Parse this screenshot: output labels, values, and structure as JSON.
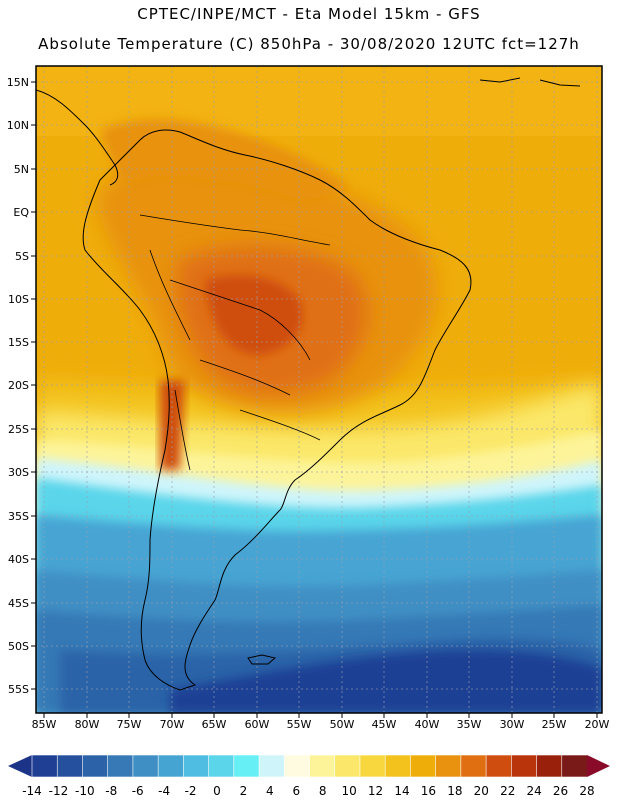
{
  "header": {
    "title_line1": "CPTEC/INPE/MCT -  Eta Model 15km - GFS",
    "title_line2": "Absolute Temperature (C) 850hPa - 30/08/2020 12UTC fct=127h"
  },
  "map": {
    "lat_labels": [
      "15N",
      "10N",
      "5N",
      "EQ",
      "5S",
      "10S",
      "15S",
      "20S",
      "25S",
      "30S",
      "35S",
      "40S",
      "45S",
      "50S",
      "55S"
    ],
    "lon_labels": [
      "85W",
      "80W",
      "75W",
      "70W",
      "65W",
      "60W",
      "55W",
      "50W",
      "45W",
      "40W",
      "35W",
      "30W",
      "25W",
      "20W"
    ],
    "lat_range": [
      -57,
      16.5
    ],
    "lon_range": [
      -86,
      -19.5
    ]
  },
  "colorbar": {
    "labels": [
      "-14",
      "-12",
      "-10",
      "-8",
      "-6",
      "-4",
      "-2",
      "0",
      "2",
      "4",
      "6",
      "8",
      "10",
      "12",
      "14",
      "16",
      "18",
      "20",
      "22",
      "24",
      "26",
      "28"
    ],
    "colors": [
      "#1e3f94",
      "#25509d",
      "#2c63a8",
      "#3679b6",
      "#3f8fc4",
      "#46a4d3",
      "#4fbde1",
      "#5ad5ea",
      "#66f0f5",
      "#cff5fb",
      "#fffbe0",
      "#fdf49a",
      "#fbe86a",
      "#f8d73e",
      "#f3c21d",
      "#efad0a",
      "#e8920f",
      "#e06f12",
      "#cf4d0e",
      "#b9330b",
      "#99200a",
      "#7a1a18"
    ],
    "end_low_color": "#1c3488",
    "end_high_color": "#8a0a2a"
  }
}
